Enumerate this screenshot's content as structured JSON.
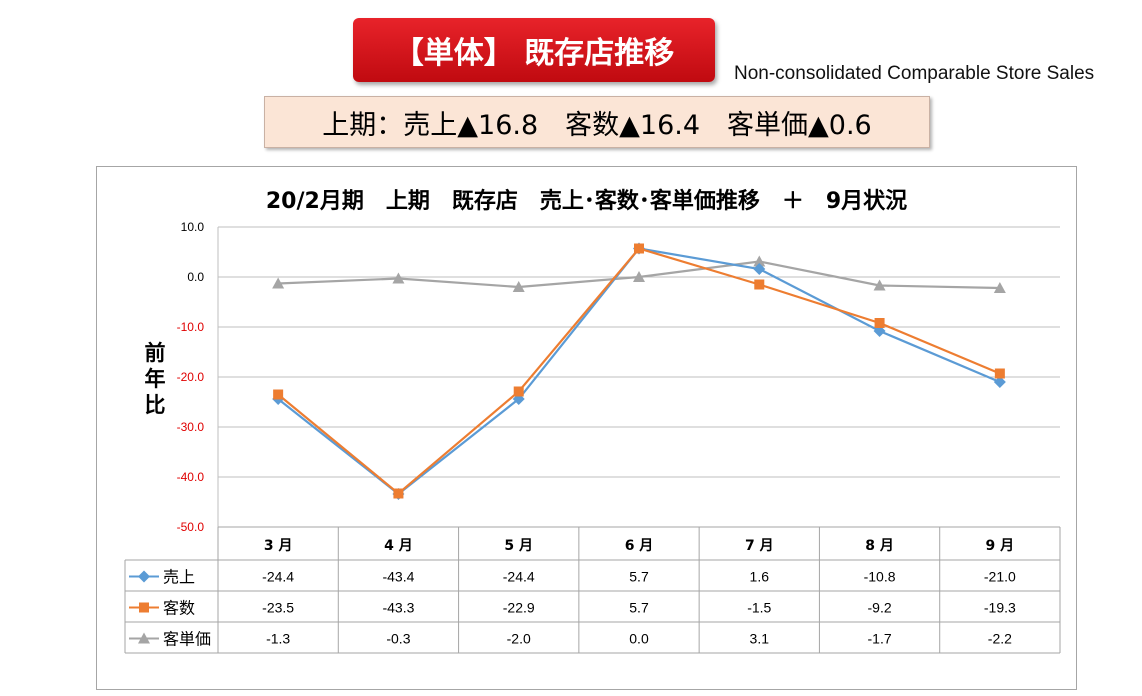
{
  "header": {
    "title": "【単体】 既存店推移",
    "subtitle": "Non-consolidated Comparable Store Sales",
    "summary": "上期：売上▲16.8　客数▲16.4　客単価▲0.6"
  },
  "chart_data": {
    "type": "line",
    "title": "20/2月期　上期　既存店　売上･客数･客単価推移　＋　9月状況",
    "ylabel": "前年比",
    "xlabel": "",
    "ylim": [
      -50,
      10
    ],
    "yticks": [
      "10.0",
      "0.0",
      "-10.0",
      "-20.0",
      "-30.0",
      "-40.0",
      "-50.0"
    ],
    "grid": true,
    "legend": "data-table",
    "categories": [
      "3 月",
      "4 月",
      "5 月",
      "6 月",
      "7 月",
      "8 月",
      "9 月"
    ],
    "series": [
      {
        "name": "売上",
        "color": "#5b9bd5",
        "marker": "diamond",
        "values": [
          -24.4,
          -43.4,
          -24.4,
          5.7,
          1.6,
          -10.8,
          -21.0
        ],
        "labels": [
          "-24.4",
          "-43.4",
          "-24.4",
          "5.7",
          "1.6",
          "-10.8",
          "-21.0"
        ]
      },
      {
        "name": "客数",
        "color": "#ed7d31",
        "marker": "square",
        "values": [
          -23.5,
          -43.3,
          -22.9,
          5.7,
          -1.5,
          -9.2,
          -19.3
        ],
        "labels": [
          "-23.5",
          "-43.3",
          "-22.9",
          "5.7",
          "-1.5",
          "-9.2",
          "-19.3"
        ]
      },
      {
        "name": "客単価",
        "color": "#a5a5a5",
        "marker": "triangle",
        "values": [
          -1.3,
          -0.3,
          -2.0,
          0.0,
          3.1,
          -1.7,
          -2.2
        ],
        "labels": [
          "-1.3",
          "-0.3",
          "-2.0",
          "0.0",
          "3.1",
          "-1.7",
          "-2.2"
        ]
      }
    ]
  }
}
